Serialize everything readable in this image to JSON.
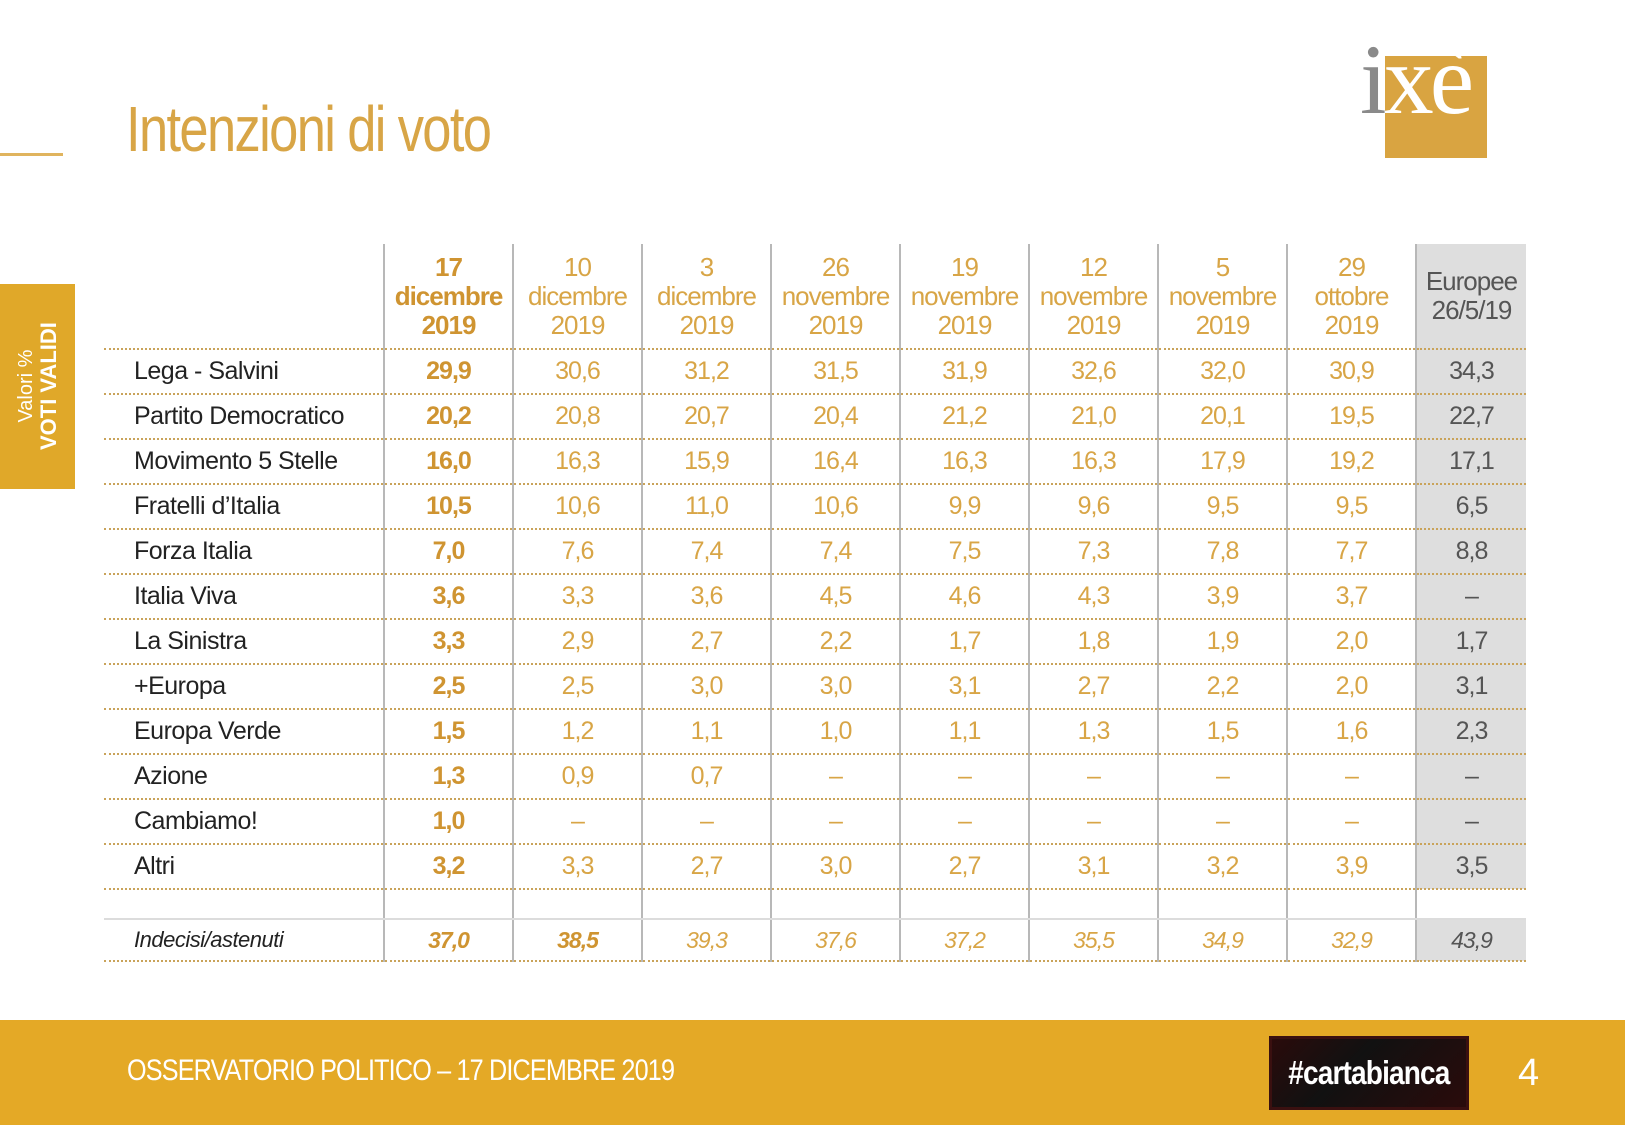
{
  "title": "Intenzioni di voto",
  "logo": {
    "text_pre": "i",
    "text_x": "x",
    "text_post": "è"
  },
  "side_tab": {
    "line1": "Valori %",
    "line2": "VOTI VALIDI"
  },
  "table": {
    "columns": [
      {
        "day": "17",
        "month": "dicembre",
        "year": "2019"
      },
      {
        "day": "10",
        "month": "dicembre",
        "year": "2019"
      },
      {
        "day": "3",
        "month": "dicembre",
        "year": "2019"
      },
      {
        "day": "26",
        "month": "novembre",
        "year": "2019"
      },
      {
        "day": "19",
        "month": "novembre",
        "year": "2019"
      },
      {
        "day": "12",
        "month": "novembre",
        "year": "2019"
      },
      {
        "day": "5",
        "month": "novembre",
        "year": "2019"
      },
      {
        "day": "29",
        "month": "ottobre",
        "year": "2019"
      }
    ],
    "europee": {
      "line1": "Europee",
      "line2": "26/5/19"
    },
    "rows": [
      {
        "party": "Lega - Salvini",
        "values": [
          "29,9",
          "30,6",
          "31,2",
          "31,5",
          "31,9",
          "32,6",
          "32,0",
          "30,9"
        ],
        "eu": "34,3"
      },
      {
        "party": "Partito Democratico",
        "values": [
          "20,2",
          "20,8",
          "20,7",
          "20,4",
          "21,2",
          "21,0",
          "20,1",
          "19,5"
        ],
        "eu": "22,7"
      },
      {
        "party": "Movimento 5 Stelle",
        "values": [
          "16,0",
          "16,3",
          "15,9",
          "16,4",
          "16,3",
          "16,3",
          "17,9",
          "19,2"
        ],
        "eu": "17,1"
      },
      {
        "party": "Fratelli d’Italia",
        "values": [
          "10,5",
          "10,6",
          "11,0",
          "10,6",
          "9,9",
          "9,6",
          "9,5",
          "9,5"
        ],
        "eu": "6,5"
      },
      {
        "party": "Forza Italia",
        "values": [
          "7,0",
          "7,6",
          "7,4",
          "7,4",
          "7,5",
          "7,3",
          "7,8",
          "7,7"
        ],
        "eu": "8,8"
      },
      {
        "party": "Italia Viva",
        "values": [
          "3,6",
          "3,3",
          "3,6",
          "4,5",
          "4,6",
          "4,3",
          "3,9",
          "3,7"
        ],
        "eu": "–"
      },
      {
        "party": "La Sinistra",
        "values": [
          "3,3",
          "2,9",
          "2,7",
          "2,2",
          "1,7",
          "1,8",
          "1,9",
          "2,0"
        ],
        "eu": "1,7"
      },
      {
        "party": "+Europa",
        "values": [
          "2,5",
          "2,5",
          "3,0",
          "3,0",
          "3,1",
          "2,7",
          "2,2",
          "2,0"
        ],
        "eu": "3,1"
      },
      {
        "party": "Europa Verde",
        "values": [
          "1,5",
          "1,2",
          "1,1",
          "1,0",
          "1,1",
          "1,3",
          "1,5",
          "1,6"
        ],
        "eu": "2,3"
      },
      {
        "party": "Azione",
        "values": [
          "1,3",
          "0,9",
          "0,7",
          "–",
          "–",
          "–",
          "–",
          "–"
        ],
        "eu": "–"
      },
      {
        "party": "Cambiamo!",
        "values": [
          "1,0",
          "–",
          "–",
          "–",
          "–",
          "–",
          "–",
          "–"
        ],
        "eu": "–"
      },
      {
        "party": "Altri",
        "values": [
          "3,2",
          "3,3",
          "2,7",
          "3,0",
          "2,7",
          "3,1",
          "3,2",
          "3,9"
        ],
        "eu": "3,5"
      }
    ],
    "undecided": {
      "label": "Indecisi/astenuti",
      "values": [
        "37,0",
        "38,5",
        "39,3",
        "37,6",
        "37,2",
        "35,5",
        "34,9",
        "32,9"
      ],
      "eu": "43,9"
    }
  },
  "footer": {
    "text": "OSSERVATORIO POLITICO – 17 DICEMBRE 2019",
    "badge": "#cartabianca",
    "page": "4"
  }
}
